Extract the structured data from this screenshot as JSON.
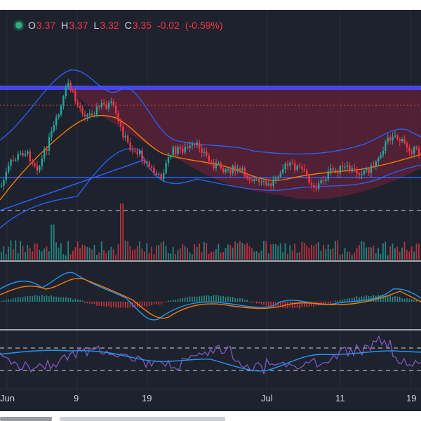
{
  "ohlc": {
    "open_key": "O",
    "open_value": "3.37",
    "high_key": "H",
    "high_value": "3.37",
    "low_key": "L",
    "low_value": "3.32",
    "close_key": "C",
    "close_value": "3.35",
    "change": "-0.02",
    "change_pct": "(-0.59%)"
  },
  "x_axis": {
    "labels": [
      "Jun",
      "9",
      "19",
      "Jul",
      "11",
      "19"
    ]
  },
  "colors": {
    "background": "#1e222d",
    "up": "#26a69a",
    "down": "#f23645",
    "bollinger": "#2962ff",
    "ma_orange": "#f57c00",
    "rsi": "#7e57c2",
    "signal_blue": "#2196f3",
    "resistance_line": "#4a48ff",
    "channel_fill": "#7a1f3d"
  },
  "icons": {
    "status": "live-status-dot-icon"
  }
}
